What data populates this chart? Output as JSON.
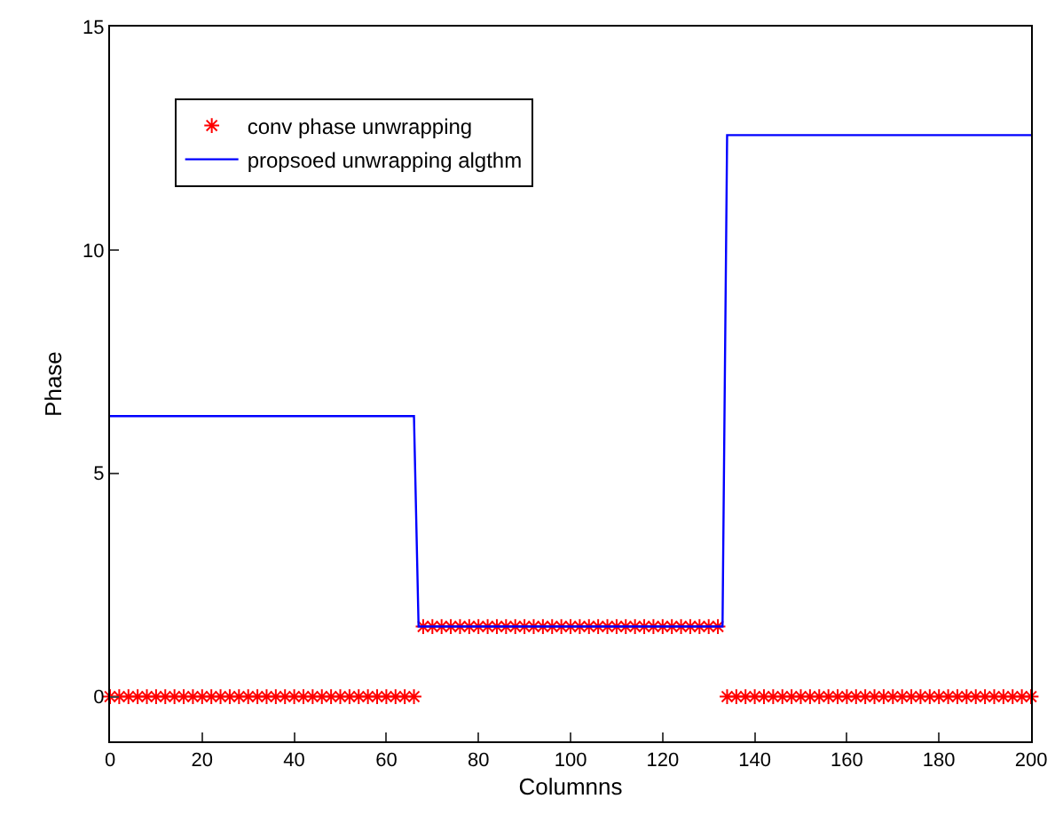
{
  "chart_data": {
    "type": "line",
    "xlabel": "Columnns",
    "ylabel": "Phase",
    "xlim": [
      0,
      200
    ],
    "xticks": [
      0,
      20,
      40,
      60,
      80,
      100,
      120,
      140,
      160,
      180,
      200
    ],
    "ylim": [
      -1,
      15
    ],
    "yticks": [
      0,
      5,
      10,
      15
    ],
    "grid": false,
    "legend": "top left",
    "series": [
      {
        "name": "conv phase unwrapping",
        "type": "scatter",
        "marker": "cross",
        "color": "#ff0000",
        "x": [
          0,
          2,
          4,
          6,
          8,
          10,
          12,
          14,
          16,
          18,
          20,
          22,
          24,
          26,
          28,
          30,
          32,
          34,
          36,
          38,
          40,
          42,
          44,
          46,
          48,
          50,
          52,
          54,
          56,
          58,
          60,
          62,
          64,
          66,
          68,
          70,
          72,
          74,
          76,
          78,
          80,
          82,
          84,
          86,
          88,
          90,
          92,
          94,
          96,
          98,
          100,
          102,
          104,
          106,
          108,
          110,
          112,
          114,
          116,
          118,
          120,
          122,
          124,
          126,
          128,
          130,
          132,
          134,
          136,
          138,
          140,
          142,
          144,
          146,
          148,
          150,
          152,
          154,
          156,
          158,
          160,
          162,
          164,
          166,
          168,
          170,
          172,
          174,
          176,
          178,
          180,
          182,
          184,
          186,
          188,
          190,
          192,
          194,
          196,
          198,
          200
        ],
        "values": [
          0,
          0,
          0,
          0,
          0,
          0,
          0,
          0,
          0,
          0,
          0,
          0,
          0,
          0,
          0,
          0,
          0,
          0,
          0,
          0,
          0,
          0,
          0,
          0,
          0,
          0,
          0,
          0,
          0,
          0,
          0,
          0,
          0,
          0,
          1.57,
          1.57,
          1.57,
          1.57,
          1.57,
          1.57,
          1.57,
          1.57,
          1.57,
          1.57,
          1.57,
          1.57,
          1.57,
          1.57,
          1.57,
          1.57,
          1.57,
          1.57,
          1.57,
          1.57,
          1.57,
          1.57,
          1.57,
          1.57,
          1.57,
          1.57,
          1.57,
          1.57,
          1.57,
          1.57,
          1.57,
          1.57,
          1.57,
          0,
          0,
          0,
          0,
          0,
          0,
          0,
          0,
          0,
          0,
          0,
          0,
          0,
          0,
          0,
          0,
          0,
          0,
          0,
          0,
          0,
          0,
          0,
          0,
          0,
          0,
          0,
          0,
          0,
          0,
          0,
          0,
          0,
          0
        ]
      },
      {
        "name": "propsoed unwrapping algthm",
        "marker": "none",
        "line_style": "solid",
        "color": "#0000ff",
        "x": [
          0,
          66,
          67,
          133,
          134,
          200
        ],
        "values": [
          6.28,
          6.28,
          1.57,
          1.57,
          12.57,
          12.57
        ]
      }
    ]
  }
}
